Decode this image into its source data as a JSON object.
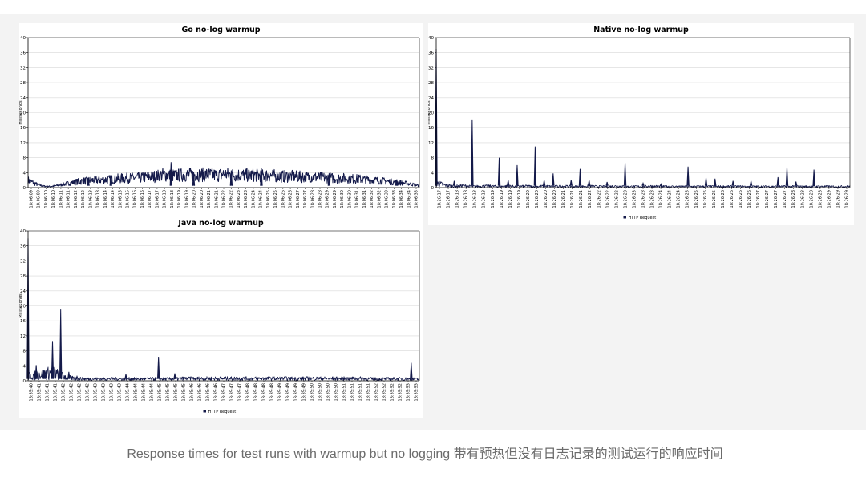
{
  "caption": "Response times for test runs with warmup but no logging 带有预热但没有日志记录的测试运行的响应时间",
  "colors": {
    "series": "#141a4a",
    "grid": "#d8d8d8",
    "axis": "#000000",
    "panel_bg": "#ffffff",
    "figure_bg": "#f3f3f3"
  },
  "chart_data": [
    {
      "type": "line",
      "title": "Go no-log warmup",
      "ylabel": "Milliseconds",
      "xlabel": "",
      "ylim": [
        0,
        40
      ],
      "yticks": [
        0,
        4,
        8,
        12,
        16,
        20,
        24,
        28,
        32,
        36,
        40
      ],
      "grid": true,
      "legend": "",
      "xtick_labels": [
        "18:06:09",
        "18:06:09",
        "18:06:10",
        "18:06:10",
        "18:06:11",
        "18:06:11",
        "18:06:12",
        "18:06:12",
        "18:06:13",
        "18:06:13",
        "18:06:14",
        "18:06:14",
        "18:06:15",
        "18:06:15",
        "18:06:16",
        "18:06:16",
        "18:06:17",
        "18:06:17",
        "18:06:18",
        "18:06:18",
        "18:06:19",
        "18:06:19",
        "18:06:20",
        "18:06:20",
        "18:06:21",
        "18:06:21",
        "18:06:22",
        "18:06:22",
        "18:06:23",
        "18:06:23",
        "18:06:24",
        "18:06:24",
        "18:06:25",
        "18:06:25",
        "18:06:26",
        "18:06:26",
        "18:06:27",
        "18:06:27",
        "18:06:28",
        "18:06:28",
        "18:06:29",
        "18:06:29",
        "18:06:30",
        "18:06:30",
        "18:06:31",
        "18:06:31",
        "18:06:32",
        "18:06:32",
        "18:06:33",
        "18:06:33",
        "18:06:34",
        "18:06:34",
        "18:06:35"
      ],
      "series": [
        {
          "name": "",
          "x": [
            0,
            1,
            2,
            3,
            4,
            5,
            6,
            7,
            8,
            9,
            10,
            11,
            12,
            13,
            14,
            15,
            16,
            17,
            18,
            19,
            20,
            21,
            22,
            23,
            24,
            25,
            26,
            27,
            28,
            29,
            30,
            31,
            32,
            33,
            34,
            35,
            36,
            37,
            38,
            39,
            40,
            41,
            42,
            43,
            44,
            45,
            46,
            47,
            48,
            49,
            50,
            51,
            52
          ],
          "y": [
            2,
            1,
            0.4,
            0.3,
            0.6,
            1,
            1.4,
            1.7,
            1.9,
            2,
            2.1,
            2.2,
            2.4,
            2.5,
            2.6,
            2.7,
            2.9,
            3,
            3.5,
            3.2,
            3.3,
            3.4,
            3.5,
            3.4,
            3.5,
            3.3,
            3.6,
            3.4,
            3.4,
            3.3,
            3.4,
            3.2,
            3.3,
            3.1,
            3,
            3,
            2.9,
            2.8,
            2.8,
            2.7,
            2.6,
            2.5,
            2.5,
            2.4,
            2.3,
            2.1,
            2,
            1.8,
            1.6,
            1.4,
            1.2,
            0.9,
            0.5
          ],
          "spikes": [
            [
              8,
              2.6
            ],
            [
              11,
              3.2
            ],
            [
              19,
              6.8
            ],
            [
              22,
              4.2
            ],
            [
              27,
              4.6
            ],
            [
              31,
              5.2
            ],
            [
              40,
              3.8
            ],
            [
              49,
              2.2
            ]
          ]
        }
      ]
    },
    {
      "type": "line",
      "title": "Native no-log warmup",
      "ylabel": "Milliseconds",
      "xlabel": "",
      "ylim": [
        0,
        40
      ],
      "yticks": [
        0,
        4,
        8,
        12,
        16,
        20,
        24,
        28,
        32,
        36,
        40
      ],
      "grid": true,
      "legend": "HTTP Request",
      "xtick_labels": [
        "18:26:17",
        "18:26:17",
        "18:26:18",
        "18:26:18",
        "18:26:18",
        "18:26:18",
        "18:26:19",
        "18:26:19",
        "18:26:19",
        "18:26:19",
        "18:26:20",
        "18:26:20",
        "18:26:20",
        "18:26:20",
        "18:26:21",
        "18:26:21",
        "18:26:21",
        "18:26:22",
        "18:26:22",
        "18:26:22",
        "18:26:22",
        "18:26:23",
        "18:26:23",
        "18:26:23",
        "18:26:23",
        "18:26:24",
        "18:26:24",
        "18:26:24",
        "18:26:25",
        "18:26:25",
        "18:26:25",
        "18:26:25",
        "18:26:26",
        "18:26:26",
        "18:26:26",
        "18:26:26",
        "18:26:27",
        "18:26:27",
        "18:26:27",
        "18:26:27",
        "18:26:28",
        "18:26:28",
        "18:26:28",
        "18:26:28",
        "18:26:29",
        "18:26:29",
        "18:26:29"
      ],
      "series": [
        {
          "name": "HTTP Request",
          "x": [
            0,
            1,
            2,
            3,
            4,
            5,
            6,
            7,
            8,
            9,
            10,
            11,
            12,
            13,
            14,
            15,
            16,
            17,
            18,
            19,
            20,
            21,
            22,
            23,
            24,
            25,
            26,
            27,
            28,
            29,
            30,
            31,
            32,
            33,
            34,
            35,
            36,
            37,
            38,
            39,
            40,
            41,
            42,
            43,
            44,
            45,
            46
          ],
          "y": [
            1.2,
            0.6,
            0.4,
            0.5,
            0.3,
            0.4,
            0.4,
            0.3,
            0.4,
            0.3,
            0.4,
            0.3,
            0.4,
            0.3,
            0.4,
            0.3,
            0.3,
            0.4,
            0.3,
            0.3,
            0.4,
            0.3,
            0.3,
            0.3,
            0.4,
            0.3,
            0.3,
            0.3,
            0.3,
            0.3,
            0.3,
            0.3,
            0.3,
            0.3,
            0.3,
            0.3,
            0.3,
            0.3,
            0.3,
            0.3,
            0.3,
            0.3,
            0.3,
            0.3,
            0.3,
            0.3,
            0.3
          ],
          "spikes": [
            [
              0,
              37
            ],
            [
              2,
              1.8
            ],
            [
              4,
              18
            ],
            [
              7,
              8
            ],
            [
              8,
              2
            ],
            [
              9,
              6
            ],
            [
              11,
              11
            ],
            [
              12,
              2
            ],
            [
              13,
              3.8
            ],
            [
              15,
              2
            ],
            [
              16,
              5
            ],
            [
              17,
              2
            ],
            [
              19,
              1.5
            ],
            [
              21,
              6.6
            ],
            [
              23,
              1.2
            ],
            [
              25,
              1
            ],
            [
              28,
              5.6
            ],
            [
              30,
              2.6
            ],
            [
              31,
              2.4
            ],
            [
              33,
              1.8
            ],
            [
              35,
              1.8
            ],
            [
              38,
              2.8
            ],
            [
              39,
              5.4
            ],
            [
              40,
              1.6
            ],
            [
              42,
              4.8
            ]
          ]
        }
      ]
    },
    {
      "type": "line",
      "title": "Java no-log warmup",
      "ylabel": "Milliseconds",
      "xlabel": "",
      "ylim": [
        0,
        40
      ],
      "yticks": [
        0,
        4,
        8,
        12,
        16,
        20,
        24,
        28,
        32,
        36,
        40
      ],
      "grid": true,
      "legend": "HTTP Request",
      "xtick_labels": [
        "18:35:40",
        "18:35:41",
        "18:35:41",
        "18:35:41",
        "18:35:42",
        "18:35:42",
        "18:35:42",
        "18:35:42",
        "18:35:43",
        "18:35:43",
        "18:35:43",
        "18:35:43",
        "18:35:44",
        "18:35:44",
        "18:35:44",
        "18:35:44",
        "18:35:45",
        "18:35:45",
        "18:35:45",
        "18:35:45",
        "18:35:46",
        "18:35:46",
        "18:35:46",
        "18:35:46",
        "18:35:47",
        "18:35:47",
        "18:35:47",
        "18:35:48",
        "18:35:48",
        "18:35:48",
        "18:35:48",
        "18:35:49",
        "18:35:49",
        "18:35:49",
        "18:35:49",
        "18:35:50",
        "18:35:50",
        "18:35:50",
        "18:35:50",
        "18:35:51",
        "18:35:51",
        "18:35:51",
        "18:35:51",
        "18:35:52",
        "18:35:52",
        "18:35:52",
        "18:35:52",
        "18:35:53",
        "18:35:53"
      ],
      "series": [
        {
          "name": "HTTP Request",
          "x": [
            0,
            1,
            2,
            3,
            4,
            5,
            6,
            7,
            8,
            9,
            10,
            11,
            12,
            13,
            14,
            15,
            16,
            17,
            18,
            19,
            20,
            21,
            22,
            23,
            24,
            25,
            26,
            27,
            28,
            29,
            30,
            31,
            32,
            33,
            34,
            35,
            36,
            37,
            38,
            39,
            40,
            41,
            42,
            43,
            44,
            45,
            46,
            47,
            48
          ],
          "y": [
            1.2,
            1.5,
            1.8,
            2.2,
            1.4,
            0.8,
            0.6,
            0.5,
            0.5,
            0.5,
            0.5,
            0.5,
            0.5,
            0.5,
            0.5,
            0.5,
            0.5,
            0.5,
            0.5,
            0.6,
            0.6,
            0.6,
            0.6,
            0.6,
            0.6,
            0.6,
            0.6,
            0.6,
            0.6,
            0.6,
            0.6,
            0.6,
            0.6,
            0.6,
            0.6,
            0.6,
            0.6,
            0.6,
            0.6,
            0.6,
            0.6,
            0.6,
            0.5,
            0.5,
            0.5,
            0.5,
            0.5,
            0.5,
            0.4
          ],
          "spikes": [
            [
              0,
              38
            ],
            [
              1,
              4.2
            ],
            [
              2,
              2.6
            ],
            [
              3,
              10.6
            ],
            [
              4,
              19
            ],
            [
              5,
              2.4
            ],
            [
              6,
              1.2
            ],
            [
              12,
              1.8
            ],
            [
              16,
              6.4
            ],
            [
              18,
              2
            ],
            [
              47,
              4.8
            ]
          ]
        }
      ]
    }
  ]
}
